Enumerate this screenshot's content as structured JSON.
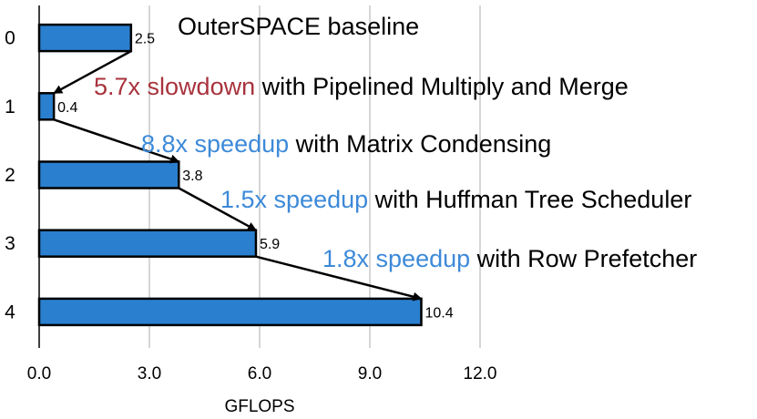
{
  "chart_data": {
    "type": "bar",
    "orientation": "horizontal",
    "categories": [
      "0",
      "1",
      "2",
      "3",
      "4"
    ],
    "values": [
      2.5,
      0.4,
      3.8,
      5.9,
      10.4
    ],
    "data_labels": [
      "2.5",
      "0.4",
      "3.8",
      "5.9",
      "10.4"
    ],
    "xlabel": "GFLOPS",
    "xlim": [
      0,
      12
    ],
    "x_ticks": [
      "0.0",
      "3.0",
      "6.0",
      "9.0",
      "12.0"
    ],
    "grid": "vertical",
    "bar_color": "#2a7fcf",
    "highlight_colors": {
      "slowdown": "#a8333d",
      "speedup": "#3d8ad8",
      "text": "#000000"
    },
    "annotations": [
      {
        "highlight": "",
        "text": "OuterSPACE baseline",
        "kind": "text"
      },
      {
        "highlight": "5.7x slowdown",
        "text": " with Pipelined Multiply and Merge",
        "kind": "slowdown"
      },
      {
        "highlight": "8.8x speedup",
        "text": " with Matrix Condensing",
        "kind": "speedup"
      },
      {
        "highlight": "1.5x speedup",
        "text": " with Huffman Tree Scheduler",
        "kind": "speedup"
      },
      {
        "highlight": "1.8x speedup",
        "text": " with Row Prefetcher",
        "kind": "speedup"
      }
    ]
  }
}
